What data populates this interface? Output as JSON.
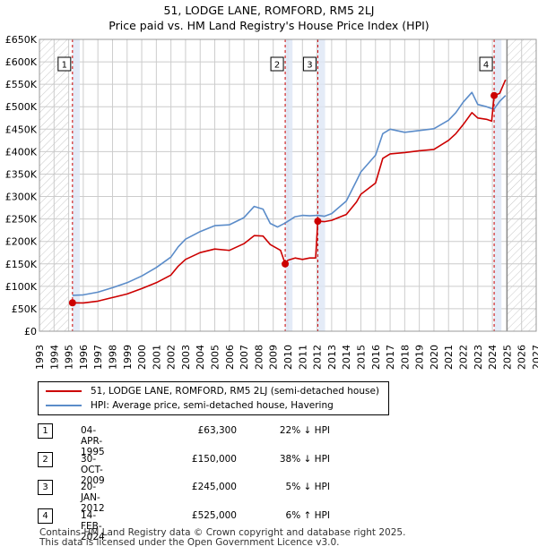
{
  "title": "51, LODGE LANE, ROMFORD, RM5 2LJ",
  "subtitle": "Price paid vs. HM Land Registry's House Price Index (HPI)",
  "colors": {
    "property": "#cc0000",
    "hpi": "#5b8cc9",
    "grid": "#cccccc",
    "shade": "#dde6f5"
  },
  "chart_data": {
    "type": "line",
    "title": "51, LODGE LANE, ROMFORD, RM5 2LJ",
    "subtitle": "Price paid vs. HM Land Registry's House Price Index (HPI)",
    "xlim": [
      1993,
      2027
    ],
    "ylim": [
      0,
      650000
    ],
    "x_ticks": [
      1993,
      1994,
      1995,
      1996,
      1997,
      1998,
      1999,
      2000,
      2001,
      2002,
      2003,
      2004,
      2005,
      2006,
      2007,
      2008,
      2009,
      2010,
      2011,
      2012,
      2013,
      2014,
      2015,
      2016,
      2017,
      2018,
      2019,
      2020,
      2021,
      2022,
      2023,
      2024,
      2025,
      2026,
      2027
    ],
    "y_ticks": [
      {
        "value": 0,
        "label": "£0"
      },
      {
        "value": 50000,
        "label": "£50K"
      },
      {
        "value": 100000,
        "label": "£100K"
      },
      {
        "value": 150000,
        "label": "£150K"
      },
      {
        "value": 200000,
        "label": "£200K"
      },
      {
        "value": 250000,
        "label": "£250K"
      },
      {
        "value": 300000,
        "label": "£300K"
      },
      {
        "value": 350000,
        "label": "£350K"
      },
      {
        "value": 400000,
        "label": "£400K"
      },
      {
        "value": 450000,
        "label": "£450K"
      },
      {
        "value": 500000,
        "label": "£500K"
      },
      {
        "value": 550000,
        "label": "£550K"
      },
      {
        "value": 600000,
        "label": "£600K"
      },
      {
        "value": 650000,
        "label": "£650K"
      }
    ],
    "hatch_before": 1995.0,
    "hatch_after": 2025.0,
    "series": [
      {
        "name": "51, LODGE LANE, ROMFORD, RM5 2LJ (semi-detached house)",
        "color": "#cc0000",
        "x": [
          1995.26,
          1996.0,
          1997.0,
          1998.0,
          1999.0,
          2000.0,
          2001.0,
          2002.0,
          2002.5,
          2003.0,
          2004.0,
          2005.0,
          2006.0,
          2007.0,
          2007.7,
          2008.3,
          2008.8,
          2009.5,
          2009.82,
          2010.0,
          2010.5,
          2011.0,
          2011.5,
          2011.9,
          2012.05,
          2012.5,
          2013.0,
          2014.0,
          2014.7,
          2015.0,
          2016.0,
          2016.5,
          2017.0,
          2018.0,
          2019.0,
          2020.0,
          2021.0,
          2021.5,
          2022.0,
          2022.6,
          2023.0,
          2023.6,
          2023.95,
          2024.12,
          2024.5,
          2024.9
        ],
        "y": [
          63300,
          63000,
          67000,
          75000,
          83000,
          95000,
          108000,
          125000,
          145000,
          160000,
          175000,
          183000,
          180000,
          195000,
          213000,
          212000,
          193000,
          180000,
          150000,
          158000,
          163000,
          160000,
          163000,
          163000,
          245000,
          244000,
          247000,
          260000,
          288000,
          305000,
          330000,
          385000,
          395000,
          398000,
          402000,
          405000,
          425000,
          440000,
          460000,
          487000,
          475000,
          472000,
          468000,
          525000,
          530000,
          560000
        ]
      },
      {
        "name": "HPI: Average price, semi-detached house, Havering",
        "color": "#5b8cc9",
        "x": [
          1995.26,
          1996.0,
          1997.0,
          1998.0,
          1999.0,
          2000.0,
          2001.0,
          2002.0,
          2002.5,
          2003.0,
          2004.0,
          2005.0,
          2006.0,
          2007.0,
          2007.7,
          2008.3,
          2008.8,
          2009.3,
          2009.82,
          2010.5,
          2011.0,
          2011.5,
          2012.05,
          2012.5,
          2013.0,
          2014.0,
          2014.7,
          2015.0,
          2016.0,
          2016.5,
          2017.0,
          2018.0,
          2019.0,
          2020.0,
          2021.0,
          2021.5,
          2022.0,
          2022.6,
          2023.0,
          2023.6,
          2023.95,
          2024.12,
          2024.5,
          2024.9
        ],
        "y": [
          80000,
          81000,
          87000,
          97000,
          108000,
          123000,
          142000,
          165000,
          188000,
          205000,
          222000,
          235000,
          237000,
          253000,
          278000,
          272000,
          240000,
          232000,
          241000,
          255000,
          258000,
          257000,
          258000,
          256000,
          262000,
          290000,
          335000,
          355000,
          392000,
          440000,
          450000,
          443000,
          447000,
          451000,
          470000,
          487000,
          510000,
          532000,
          505000,
          500000,
          496000,
          495000,
          512000,
          525000
        ]
      }
    ],
    "sales": [
      {
        "num": "1",
        "year": 1995.26,
        "price": 63300
      },
      {
        "num": "2",
        "year": 2009.82,
        "price": 150000
      },
      {
        "num": "3",
        "year": 2012.05,
        "price": 245000
      },
      {
        "num": "4",
        "year": 2024.12,
        "price": 525000
      }
    ]
  },
  "legend": {
    "property": "51, LODGE LANE, ROMFORD, RM5 2LJ (semi-detached house)",
    "hpi": "HPI: Average price, semi-detached house, Havering"
  },
  "sales_table": [
    {
      "num": "1",
      "date": "04-APR-1995",
      "price": "£63,300",
      "hpi": "22% ↓ HPI"
    },
    {
      "num": "2",
      "date": "30-OCT-2009",
      "price": "£150,000",
      "hpi": "38% ↓ HPI"
    },
    {
      "num": "3",
      "date": "20-JAN-2012",
      "price": "£245,000",
      "hpi": "5% ↓ HPI"
    },
    {
      "num": "4",
      "date": "14-FEB-2024",
      "price": "£525,000",
      "hpi": "6% ↑ HPI"
    }
  ],
  "footer": {
    "line1": "Contains HM Land Registry data © Crown copyright and database right 2025.",
    "line2": "This data is licensed under the Open Government Licence v3.0."
  }
}
